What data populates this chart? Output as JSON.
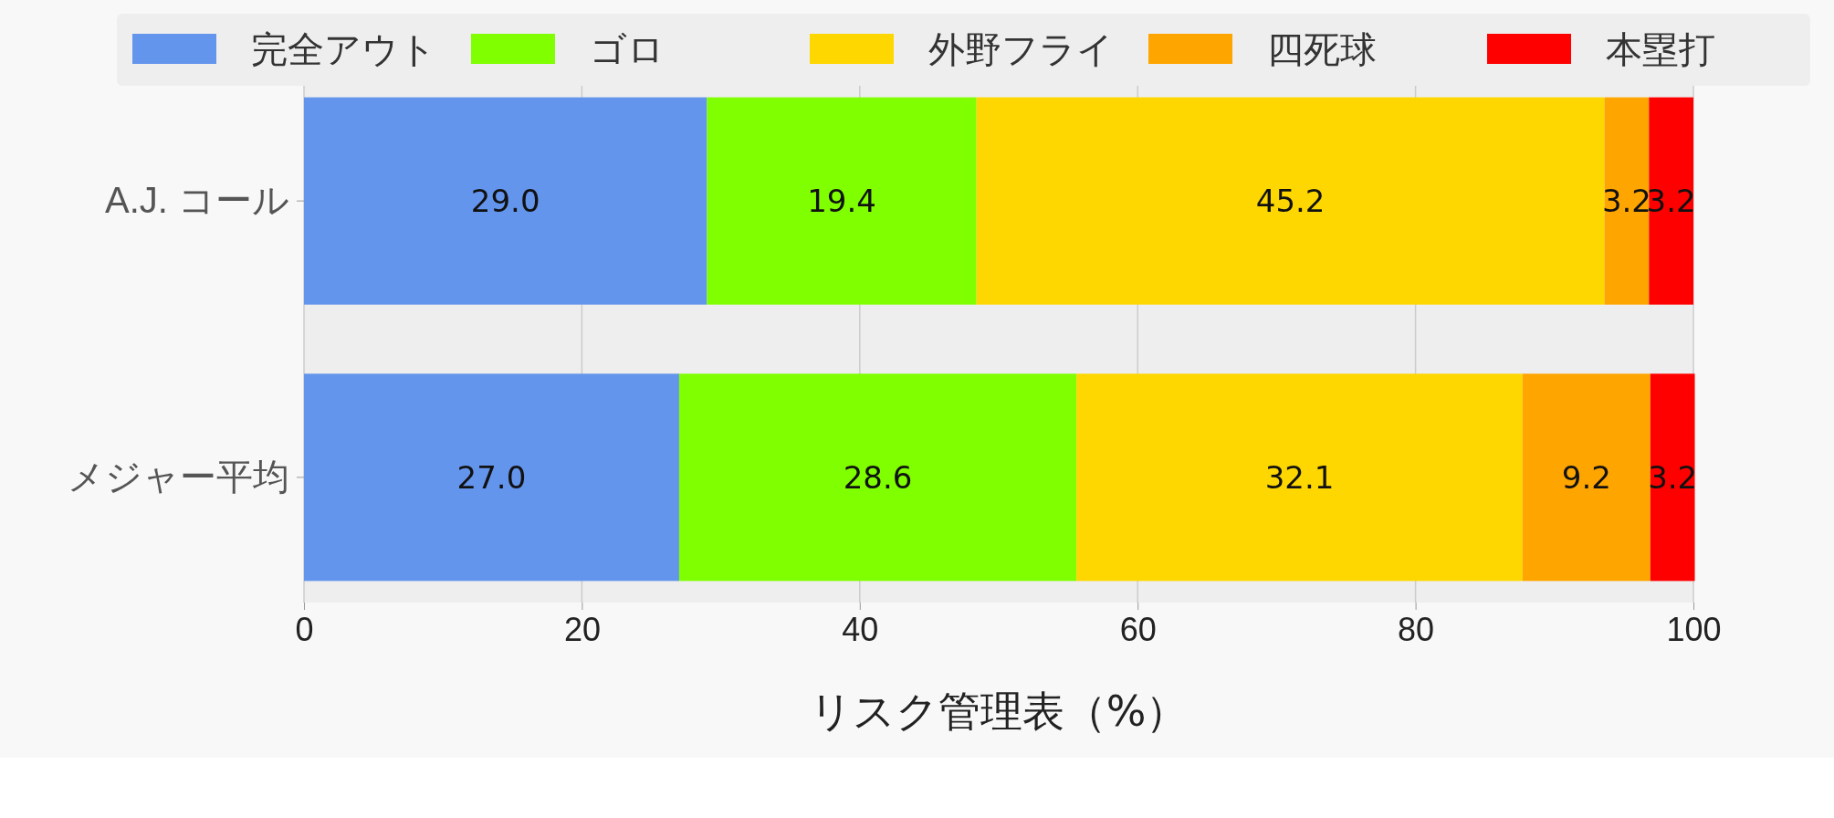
{
  "chart_data": {
    "type": "bar",
    "orientation": "horizontal",
    "stacked": true,
    "xlabel": "リスク管理表（%）",
    "categories": [
      "A.J. コール",
      "メジャー平均"
    ],
    "series": [
      {
        "name": "完全アウト",
        "color": "#6495ed",
        "values": [
          29.0,
          27.0
        ],
        "value_labels": [
          "29.0",
          "27.0"
        ]
      },
      {
        "name": "ゴロ",
        "color": "#7fff00",
        "values": [
          19.4,
          28.6
        ],
        "value_labels": [
          "19.4",
          "28.6"
        ]
      },
      {
        "name": "外野フライ",
        "color": "#ffd700",
        "values": [
          45.2,
          32.1
        ],
        "value_labels": [
          "45.2",
          "32.1"
        ]
      },
      {
        "name": "四死球",
        "color": "#ffa500",
        "values": [
          3.2,
          9.2
        ],
        "value_labels": [
          "3.2",
          "9.2"
        ]
      },
      {
        "name": "本塁打",
        "color": "#ff0000",
        "values": [
          3.2,
          3.2
        ],
        "value_labels": [
          "3.2",
          "3.2"
        ]
      }
    ],
    "xlim": [
      0,
      100
    ],
    "xticks": [
      0,
      20,
      40,
      60,
      80,
      100
    ],
    "grid": "x",
    "legend": "top"
  }
}
